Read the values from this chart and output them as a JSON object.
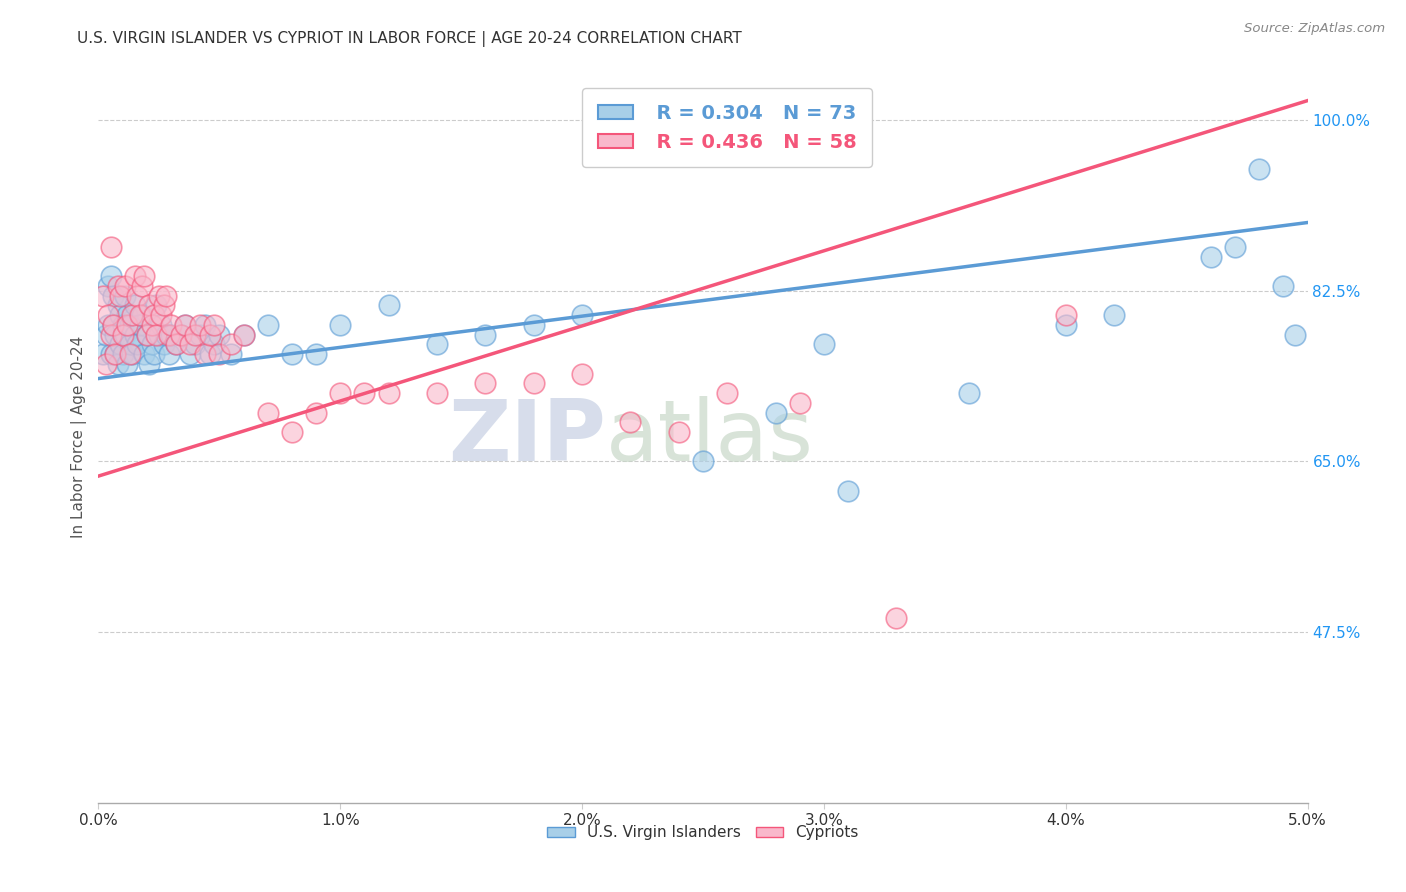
{
  "title": "U.S. VIRGIN ISLANDER VS CYPRIOT IN LABOR FORCE | AGE 20-24 CORRELATION CHART",
  "source": "Source: ZipAtlas.com",
  "ylabel": "In Labor Force | Age 20-24",
  "xlim": [
    0.0,
    0.05
  ],
  "ylim": [
    0.3,
    1.05
  ],
  "xticks": [
    0.0,
    0.01,
    0.02,
    0.03,
    0.04,
    0.05
  ],
  "xticklabels": [
    "0.0%",
    "1.0%",
    "2.0%",
    "3.0%",
    "4.0%",
    "5.0%"
  ],
  "yticks": [
    0.475,
    0.65,
    0.825,
    1.0
  ],
  "yticklabels": [
    "47.5%",
    "65.0%",
    "82.5%",
    "100.0%"
  ],
  "legend_r1": "R = 0.304",
  "legend_n1": "N = 73",
  "legend_r2": "R = 0.436",
  "legend_n2": "N = 58",
  "color_blue": "#a8cfe8",
  "color_pink": "#f9b8cb",
  "line_blue": "#5b9bd5",
  "line_pink": "#f4567a",
  "watermark_zip": "ZIP",
  "watermark_atlas": "atlas",
  "blue_line_x0": 0.0,
  "blue_line_y0": 0.735,
  "blue_line_x1": 0.05,
  "blue_line_y1": 0.895,
  "pink_line_x0": 0.0,
  "pink_line_y0": 0.635,
  "pink_line_x1": 0.05,
  "pink_line_y1": 1.02,
  "blue_scatter_x": [
    0.0002,
    0.0003,
    0.0004,
    0.0004,
    0.0005,
    0.0005,
    0.0006,
    0.0006,
    0.0007,
    0.0007,
    0.0008,
    0.0008,
    0.0009,
    0.0009,
    0.001,
    0.001,
    0.0011,
    0.0011,
    0.0012,
    0.0012,
    0.0013,
    0.0013,
    0.0014,
    0.0015,
    0.0015,
    0.0016,
    0.0017,
    0.0018,
    0.0019,
    0.002,
    0.0021,
    0.0022,
    0.0023,
    0.0024,
    0.0025,
    0.0026,
    0.0027,
    0.0028,
    0.0029,
    0.003,
    0.0032,
    0.0034,
    0.0036,
    0.0038,
    0.004,
    0.0042,
    0.0044,
    0.0046,
    0.0048,
    0.005,
    0.0055,
    0.006,
    0.007,
    0.008,
    0.009,
    0.01,
    0.012,
    0.014,
    0.016,
    0.018,
    0.02,
    0.025,
    0.028,
    0.03,
    0.031,
    0.036,
    0.04,
    0.042,
    0.046,
    0.047,
    0.048,
    0.049,
    0.0495
  ],
  "blue_scatter_y": [
    0.76,
    0.78,
    0.79,
    0.83,
    0.84,
    0.76,
    0.79,
    0.82,
    0.78,
    0.76,
    0.81,
    0.75,
    0.8,
    0.77,
    0.79,
    0.76,
    0.78,
    0.82,
    0.75,
    0.8,
    0.77,
    0.79,
    0.76,
    0.81,
    0.78,
    0.77,
    0.79,
    0.8,
    0.76,
    0.78,
    0.75,
    0.77,
    0.76,
    0.81,
    0.78,
    0.79,
    0.77,
    0.78,
    0.76,
    0.78,
    0.77,
    0.78,
    0.79,
    0.76,
    0.77,
    0.78,
    0.79,
    0.76,
    0.77,
    0.78,
    0.76,
    0.78,
    0.79,
    0.76,
    0.76,
    0.79,
    0.81,
    0.77,
    0.78,
    0.79,
    0.8,
    0.65,
    0.7,
    0.77,
    0.62,
    0.72,
    0.79,
    0.8,
    0.86,
    0.87,
    0.95,
    0.83,
    0.78
  ],
  "pink_scatter_x": [
    0.0002,
    0.0003,
    0.0004,
    0.0005,
    0.0005,
    0.0006,
    0.0007,
    0.0008,
    0.0009,
    0.001,
    0.0011,
    0.0012,
    0.0013,
    0.0014,
    0.0015,
    0.0016,
    0.0017,
    0.0018,
    0.0019,
    0.002,
    0.0021,
    0.0022,
    0.0023,
    0.0024,
    0.0025,
    0.0026,
    0.0027,
    0.0028,
    0.0029,
    0.003,
    0.0032,
    0.0034,
    0.0036,
    0.0038,
    0.004,
    0.0042,
    0.0044,
    0.0046,
    0.0048,
    0.005,
    0.0055,
    0.006,
    0.007,
    0.008,
    0.009,
    0.01,
    0.011,
    0.012,
    0.014,
    0.016,
    0.018,
    0.02,
    0.022,
    0.024,
    0.026,
    0.029,
    0.033,
    0.04
  ],
  "pink_scatter_y": [
    0.82,
    0.75,
    0.8,
    0.87,
    0.78,
    0.79,
    0.76,
    0.83,
    0.82,
    0.78,
    0.83,
    0.79,
    0.76,
    0.8,
    0.84,
    0.82,
    0.8,
    0.83,
    0.84,
    0.78,
    0.81,
    0.79,
    0.8,
    0.78,
    0.82,
    0.8,
    0.81,
    0.82,
    0.78,
    0.79,
    0.77,
    0.78,
    0.79,
    0.77,
    0.78,
    0.79,
    0.76,
    0.78,
    0.79,
    0.76,
    0.77,
    0.78,
    0.7,
    0.68,
    0.7,
    0.72,
    0.72,
    0.72,
    0.72,
    0.73,
    0.73,
    0.74,
    0.69,
    0.68,
    0.72,
    0.71,
    0.49,
    0.8
  ]
}
